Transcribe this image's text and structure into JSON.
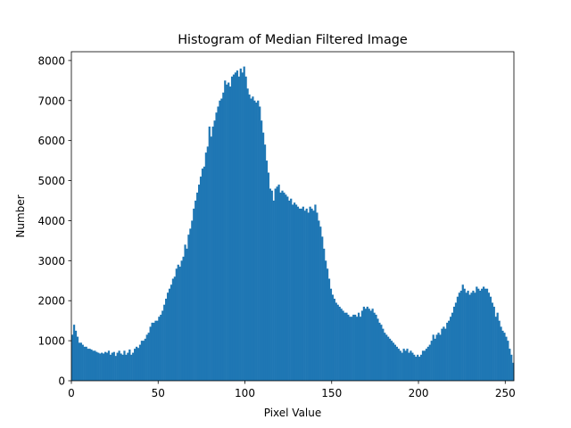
{
  "chart_data": {
    "type": "histogram",
    "title": "Histogram of Median Filtered Image",
    "xlabel": "Pixel Value",
    "ylabel": "Number",
    "color": "#1f77b4",
    "bins": [
      0,
      1,
      2,
      3,
      4,
      5,
      6,
      7,
      8,
      9,
      10,
      11,
      12,
      13,
      14,
      15,
      16,
      17,
      18,
      19,
      20,
      21,
      22,
      23,
      24,
      25,
      26,
      27,
      28,
      29,
      30,
      31,
      32,
      33,
      34,
      35,
      36,
      37,
      38,
      39,
      40,
      41,
      42,
      43,
      44,
      45,
      46,
      47,
      48,
      49,
      50,
      51,
      52,
      53,
      54,
      55,
      56,
      57,
      58,
      59,
      60,
      61,
      62,
      63,
      64,
      65,
      66,
      67,
      68,
      69,
      70,
      71,
      72,
      73,
      74,
      75,
      76,
      77,
      78,
      79,
      80,
      81,
      82,
      83,
      84,
      85,
      86,
      87,
      88,
      89,
      90,
      91,
      92,
      93,
      94,
      95,
      96,
      97,
      98,
      99,
      100,
      101,
      102,
      103,
      104,
      105,
      106,
      107,
      108,
      109,
      110,
      111,
      112,
      113,
      114,
      115,
      116,
      117,
      118,
      119,
      120,
      121,
      122,
      123,
      124,
      125,
      126,
      127,
      128,
      129,
      130,
      131,
      132,
      133,
      134,
      135,
      136,
      137,
      138,
      139,
      140,
      141,
      142,
      143,
      144,
      145,
      146,
      147,
      148,
      149,
      150,
      151,
      152,
      153,
      154,
      155,
      156,
      157,
      158,
      159,
      160,
      161,
      162,
      163,
      164,
      165,
      166,
      167,
      168,
      169,
      170,
      171,
      172,
      173,
      174,
      175,
      176,
      177,
      178,
      179,
      180,
      181,
      182,
      183,
      184,
      185,
      186,
      187,
      188,
      189,
      190,
      191,
      192,
      193,
      194,
      195,
      196,
      197,
      198,
      199,
      200,
      201,
      202,
      203,
      204,
      205,
      206,
      207,
      208,
      209,
      210,
      211,
      212,
      213,
      214,
      215,
      216,
      217,
      218,
      219,
      220,
      221,
      222,
      223,
      224,
      225,
      226,
      227,
      228,
      229,
      230,
      231,
      232,
      233,
      234,
      235,
      236,
      237,
      238,
      239,
      240,
      241,
      242,
      243,
      244,
      245,
      246,
      247,
      248,
      249,
      250,
      251,
      252,
      253,
      254,
      255
    ],
    "counts": [
      1150,
      1400,
      1250,
      1100,
      950,
      950,
      900,
      850,
      850,
      800,
      800,
      780,
      750,
      750,
      720,
      700,
      680,
      700,
      680,
      720,
      700,
      750,
      650,
      700,
      720,
      620,
      700,
      750,
      680,
      650,
      750,
      650,
      700,
      780,
      650,
      700,
      800,
      850,
      820,
      900,
      1000,
      1000,
      1050,
      1150,
      1200,
      1350,
      1450,
      1450,
      1500,
      1500,
      1600,
      1650,
      1750,
      1900,
      2050,
      2200,
      2300,
      2400,
      2550,
      2600,
      2800,
      2900,
      2850,
      3000,
      3100,
      3400,
      3300,
      3650,
      3800,
      4000,
      4300,
      4500,
      4700,
      4900,
      5100,
      5300,
      5350,
      5700,
      5850,
      6350,
      6100,
      6350,
      6500,
      6700,
      6850,
      7000,
      7050,
      7200,
      7500,
      7400,
      7450,
      7350,
      7600,
      7650,
      7700,
      7750,
      7600,
      7800,
      7700,
      7850,
      7600,
      7300,
      7150,
      7050,
      7100,
      7000,
      6950,
      7000,
      6850,
      6500,
      6200,
      5900,
      5500,
      5200,
      4800,
      4750,
      4500,
      4800,
      4850,
      4900,
      4700,
      4750,
      4700,
      4650,
      4600,
      4500,
      4550,
      4400,
      4450,
      4400,
      4350,
      4300,
      4300,
      4350,
      4250,
      4300,
      4200,
      4350,
      4300,
      4250,
      4400,
      4200,
      4000,
      3850,
      3600,
      3300,
      3000,
      2800,
      2550,
      2300,
      2150,
      2050,
      1950,
      1900,
      1850,
      1800,
      1750,
      1700,
      1700,
      1650,
      1600,
      1600,
      1650,
      1650,
      1600,
      1700,
      1600,
      1750,
      1850,
      1800,
      1850,
      1800,
      1750,
      1800,
      1700,
      1650,
      1550,
      1450,
      1400,
      1300,
      1200,
      1150,
      1100,
      1050,
      1000,
      950,
      900,
      850,
      800,
      750,
      700,
      800,
      750,
      800,
      700,
      750,
      700,
      650,
      600,
      650,
      600,
      650,
      750,
      750,
      800,
      850,
      900,
      1000,
      1150,
      1050,
      1150,
      1200,
      1150,
      1300,
      1350,
      1300,
      1450,
      1500,
      1600,
      1700,
      1850,
      1950,
      2100,
      2200,
      2250,
      2400,
      2300,
      2200,
      2250,
      2150,
      2200,
      2250,
      2200,
      2350,
      2300,
      2250,
      2300,
      2350,
      2300,
      2300,
      2200,
      2100,
      1950,
      1850,
      1600,
      1700,
      1500,
      1350,
      1250,
      1200,
      1100,
      1000,
      800,
      650,
      450
    ],
    "xlim": [
      0,
      255
    ],
    "ylim": [
      0,
      8220
    ],
    "xticks": [
      0,
      50,
      100,
      150,
      200,
      250
    ],
    "yticks": [
      0,
      1000,
      2000,
      3000,
      4000,
      5000,
      6000,
      7000,
      8000
    ]
  }
}
